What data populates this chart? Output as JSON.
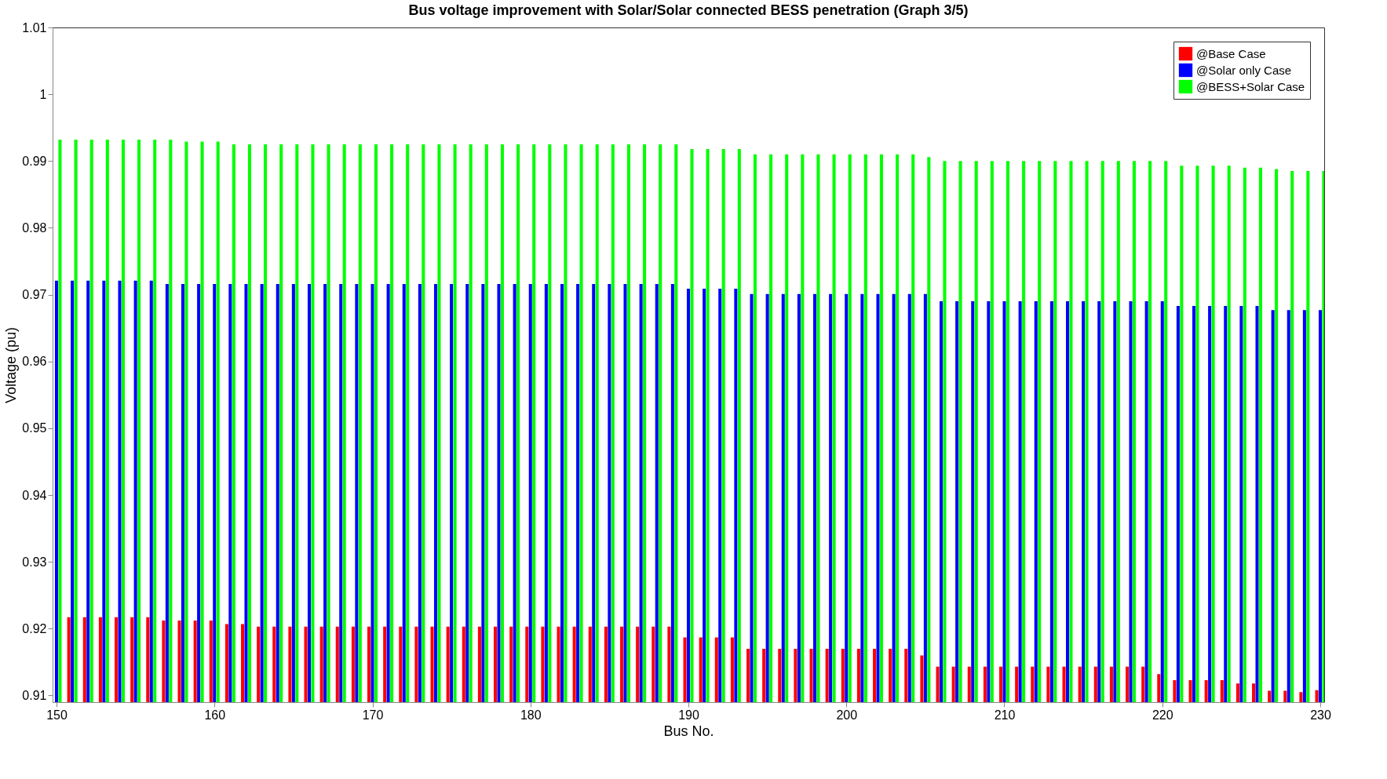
{
  "chart_data": {
    "type": "bar",
    "title": "Bus voltage improvement with Solar/Solar connected BESS penetration (Graph 3/5)",
    "xlabel": "Bus No.",
    "ylabel": "Voltage (pu)",
    "x": [
      150,
      151,
      152,
      153,
      154,
      155,
      156,
      157,
      158,
      159,
      160,
      161,
      162,
      163,
      164,
      165,
      166,
      167,
      168,
      169,
      170,
      171,
      172,
      173,
      174,
      175,
      176,
      177,
      178,
      179,
      180,
      181,
      182,
      183,
      184,
      185,
      186,
      187,
      188,
      189,
      190,
      191,
      192,
      193,
      194,
      195,
      196,
      197,
      198,
      199,
      200,
      201,
      202,
      203,
      204,
      205,
      206,
      207,
      208,
      209,
      210,
      211,
      212,
      213,
      214,
      215,
      216,
      217,
      218,
      219,
      220,
      221,
      222,
      223,
      224,
      225,
      226,
      227,
      228,
      229,
      230
    ],
    "xlim": [
      150,
      230
    ],
    "xticks": [
      150,
      160,
      170,
      180,
      190,
      200,
      210,
      220,
      230
    ],
    "ylim": [
      0.909,
      1.01
    ],
    "yticks": [
      0.91,
      0.92,
      0.93,
      0.94,
      0.95,
      0.96,
      0.97,
      0.98,
      0.99,
      1,
      1.01
    ],
    "grid": false,
    "legend": "top right",
    "series": [
      {
        "name": "@Base Case",
        "color": "#ff0000",
        "values": [
          null,
          0.9217,
          0.9217,
          0.9217,
          0.9217,
          0.9217,
          0.9217,
          0.9212,
          0.9212,
          0.9212,
          0.9212,
          0.9207,
          0.9207,
          0.9203,
          0.9203,
          0.9203,
          0.9203,
          0.9203,
          0.9203,
          0.9203,
          0.9203,
          0.9203,
          0.9203,
          0.9203,
          0.9203,
          0.9203,
          0.9203,
          0.9203,
          0.9203,
          0.9203,
          0.9203,
          0.9203,
          0.9203,
          0.9203,
          0.9203,
          0.9203,
          0.9203,
          0.9203,
          0.9203,
          0.9203,
          0.9187,
          0.9187,
          0.9187,
          0.9187,
          0.917,
          0.917,
          0.917,
          0.917,
          0.917,
          0.917,
          0.917,
          0.917,
          0.917,
          0.917,
          0.917,
          0.916,
          0.9143,
          0.9143,
          0.9143,
          0.9143,
          0.9143,
          0.9143,
          0.9143,
          0.9143,
          0.9143,
          0.9143,
          0.9143,
          0.9143,
          0.9143,
          0.9143,
          0.9132,
          0.9123,
          0.9123,
          0.9123,
          0.9123,
          0.9118,
          0.9118,
          0.9107,
          0.9107,
          0.9105,
          0.9108
        ]
      },
      {
        "name": "@Solar only Case",
        "color": "#0000ff",
        "values": [
          0.9721,
          0.9721,
          0.9721,
          0.9721,
          0.9721,
          0.9721,
          0.9721,
          0.9716,
          0.9716,
          0.9716,
          0.9716,
          0.9716,
          0.9716,
          0.9716,
          0.9716,
          0.9716,
          0.9716,
          0.9716,
          0.9716,
          0.9716,
          0.9716,
          0.9716,
          0.9716,
          0.9716,
          0.9716,
          0.9716,
          0.9716,
          0.9716,
          0.9716,
          0.9716,
          0.9716,
          0.9716,
          0.9716,
          0.9716,
          0.9716,
          0.9716,
          0.9716,
          0.9716,
          0.9716,
          0.9716,
          0.9709,
          0.9709,
          0.9709,
          0.9709,
          0.9701,
          0.9701,
          0.9701,
          0.9701,
          0.9701,
          0.9701,
          0.9701,
          0.9701,
          0.9701,
          0.9701,
          0.9701,
          0.9701,
          0.969,
          0.969,
          0.969,
          0.969,
          0.969,
          0.969,
          0.969,
          0.969,
          0.969,
          0.969,
          0.969,
          0.969,
          0.969,
          0.969,
          0.969,
          0.9683,
          0.9683,
          0.9683,
          0.9683,
          0.9683,
          0.9683,
          0.9677,
          0.9677,
          0.9677,
          0.9677
        ]
      },
      {
        "name": "@BESS+Solar Case",
        "color": "#00ff00",
        "values": [
          0.9932,
          0.9932,
          0.9932,
          0.9932,
          0.9932,
          0.9932,
          0.9932,
          0.9932,
          0.9929,
          0.9929,
          0.9929,
          0.9925,
          0.9925,
          0.9925,
          0.9925,
          0.9925,
          0.9925,
          0.9925,
          0.9925,
          0.9925,
          0.9925,
          0.9925,
          0.9925,
          0.9925,
          0.9925,
          0.9925,
          0.9925,
          0.9925,
          0.9925,
          0.9925,
          0.9925,
          0.9925,
          0.9925,
          0.9925,
          0.9925,
          0.9925,
          0.9925,
          0.9925,
          0.9925,
          0.9925,
          0.9918,
          0.9918,
          0.9918,
          0.9918,
          0.991,
          0.991,
          0.991,
          0.991,
          0.991,
          0.991,
          0.991,
          0.991,
          0.991,
          0.991,
          0.991,
          0.9906,
          0.99,
          0.99,
          0.99,
          0.99,
          0.99,
          0.99,
          0.99,
          0.99,
          0.99,
          0.99,
          0.99,
          0.99,
          0.99,
          0.99,
          0.99,
          0.9893,
          0.9893,
          0.9893,
          0.9893,
          0.989,
          0.989,
          0.9888,
          0.9885,
          0.9885,
          0.9885
        ]
      }
    ]
  }
}
